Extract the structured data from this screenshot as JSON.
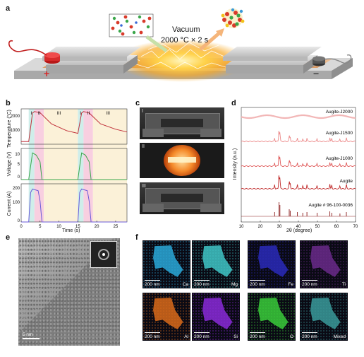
{
  "panels": {
    "a": "a",
    "b": "b",
    "c": "c",
    "d": "d",
    "e": "e",
    "f": "f"
  },
  "panel_a": {
    "condition_line1": "Vacuum",
    "condition_line2": "2000 °C × 2 s",
    "plus": "+",
    "minus": "−"
  },
  "panel_b": {
    "stage_labels": [
      "I",
      "II",
      "III",
      "I",
      "II",
      "III"
    ],
    "ylabel_temperature": "Temperature (°C)",
    "ylabel_voltage": "Voltage (V)",
    "ylabel_current": "Current (A)",
    "xlabel": "Time (s)",
    "temp_ticks": [
      "2000",
      "1000"
    ],
    "volt_ticks": [
      "10",
      "5",
      "0"
    ],
    "curr_ticks": [
      "200",
      "100",
      "0"
    ],
    "x_ticks": [
      "0",
      "5",
      "10",
      "15",
      "20",
      "25"
    ]
  },
  "panel_c": {
    "stages": [
      "I",
      "II",
      "III"
    ]
  },
  "panel_e": {
    "scalebar": "5 nm"
  },
  "panel_f": {
    "maps": [
      {
        "element": "Ca",
        "scale": "200 nm",
        "color": "#2aa8d8"
      },
      {
        "element": "Mg",
        "scale": "200 nm",
        "color": "#3fc6c6"
      },
      {
        "element": "Fe",
        "scale": "200 nm",
        "color": "#2a2ab8"
      },
      {
        "element": "Ti",
        "scale": "200 nm",
        "color": "#6a2a8a"
      },
      {
        "element": "Al",
        "scale": "200 nm",
        "color": "#d86a1a"
      },
      {
        "element": "Si",
        "scale": "200 nm",
        "color": "#8a2ad8"
      },
      {
        "element": "O",
        "scale": "200 nm",
        "color": "#3acb3a"
      },
      {
        "element": "Mixed",
        "scale": "200 nm",
        "color": "#3a9a9a"
      }
    ]
  },
  "chart_data": [
    {
      "type": "line",
      "panel": "b",
      "xlabel": "Time (s)",
      "xlim": [
        0,
        28
      ],
      "x_ticks": [
        0,
        5,
        10,
        15,
        20,
        25
      ],
      "stage_labels": [
        "I",
        "II",
        "III"
      ],
      "series": [
        {
          "name": "Temperature (°C)",
          "color": "#c0303a",
          "x": [
            0,
            2,
            3,
            3.5,
            5,
            8,
            12,
            15,
            16,
            16.5,
            18,
            21,
            25,
            28
          ],
          "y": [
            900,
            900,
            1950,
            2000,
            1960,
            1550,
            1300,
            1200,
            1950,
            2000,
            1950,
            1550,
            1350,
            1250
          ]
        },
        {
          "name": "Voltage (V)",
          "color": "#3aa64a",
          "x": [
            0,
            2,
            2.5,
            3,
            4,
            5,
            5.5,
            6,
            15,
            15.5,
            16,
            17,
            18,
            18.5,
            19,
            28
          ],
          "y": [
            0,
            0,
            6,
            12,
            11,
            8,
            0,
            0,
            0,
            6,
            12,
            11,
            8,
            0,
            0,
            0
          ]
        },
        {
          "name": "Current (A)",
          "color": "#6a5ad8",
          "x": [
            0,
            2,
            2.5,
            3,
            4.5,
            5,
            5.5,
            6,
            15,
            15.5,
            16,
            17.5,
            18,
            18.5,
            19,
            28
          ],
          "y": [
            0,
            0,
            170,
            190,
            180,
            120,
            0,
            0,
            0,
            170,
            190,
            180,
            120,
            0,
            0,
            0
          ]
        }
      ]
    },
    {
      "type": "line",
      "panel": "d",
      "xlabel": "2θ (degree)",
      "ylabel": "Intensity (a.u.)",
      "xlim": [
        10,
        70
      ],
      "x_ticks": [
        10,
        20,
        30,
        40,
        50,
        60,
        70
      ],
      "series": [
        {
          "name": "Augite-J2000",
          "color": "#f2b6b6"
        },
        {
          "name": "Augite-J1500",
          "color": "#ec8a8a"
        },
        {
          "name": "Augite-J1000",
          "color": "#e05a5a"
        },
        {
          "name": "Augite",
          "color": "#c02a2a"
        },
        {
          "name": "Augite # 96-100-0036",
          "color": "#8a1a1a"
        }
      ],
      "peaks": [
        27.5,
        29.8,
        30.3,
        35.2,
        35.7,
        39.5,
        42.3,
        44.5,
        49.8,
        56.5,
        57.5,
        61.8,
        65.2
      ]
    }
  ]
}
